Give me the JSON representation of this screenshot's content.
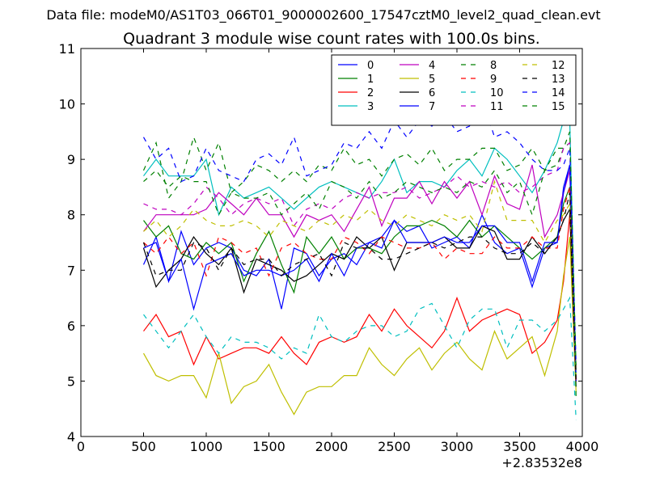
{
  "suptitle": "Data file: modeM0/AS1T03_066T01_9000002600_17547cztM0_level2_quad_clean.evt",
  "chart_data": {
    "type": "line",
    "title": "Quadrant 3 module wise count rates with 100.0s bins.",
    "xlabel": "",
    "ylabel": "",
    "x_offset_label": "+2.83532e8",
    "xlim": [
      0,
      4000
    ],
    "ylim": [
      4,
      11
    ],
    "xticks": [
      0,
      500,
      1000,
      1500,
      2000,
      2500,
      3000,
      3500,
      4000
    ],
    "xtick_labels": [
      "0",
      "500",
      "1000",
      "1500",
      "2000",
      "2500",
      "3000",
      "3500",
      "4000"
    ],
    "yticks": [
      4,
      5,
      6,
      7,
      8,
      9,
      10,
      11
    ],
    "ytick_labels": [
      "4",
      "5",
      "6",
      "7",
      "8",
      "9",
      "10",
      "11"
    ],
    "legend_position": "top-right",
    "legend_columns": 4,
    "x": [
      500,
      600,
      700,
      800,
      900,
      1000,
      1100,
      1200,
      1300,
      1400,
      1500,
      1600,
      1700,
      1800,
      1900,
      2000,
      2100,
      2200,
      2300,
      2400,
      2500,
      2600,
      2700,
      2800,
      2900,
      3000,
      3100,
      3200,
      3300,
      3400,
      3500,
      3600,
      3700,
      3800,
      3850,
      3900,
      3950
    ],
    "series": [
      {
        "name": "0",
        "color": "#0000ff",
        "dash": "solid",
        "values": [
          7.1,
          7.6,
          6.8,
          7.7,
          7.1,
          7.4,
          7.5,
          7.4,
          7.0,
          6.9,
          7.2,
          6.3,
          7.4,
          7.3,
          6.9,
          7.2,
          7.3,
          7.1,
          7.5,
          7.6,
          7.9,
          7.7,
          7.8,
          7.4,
          7.5,
          7.6,
          7.4,
          8.0,
          7.5,
          7.3,
          7.4,
          6.7,
          7.4,
          7.5,
          8.5,
          8.9,
          5.0
        ]
      },
      {
        "name": "1",
        "color": "#008000",
        "dash": "solid",
        "values": [
          7.9,
          7.6,
          7.8,
          7.3,
          7.2,
          7.5,
          7.3,
          7.5,
          6.8,
          7.3,
          7.7,
          7.1,
          6.6,
          7.6,
          7.3,
          7.6,
          7.2,
          7.4,
          7.4,
          7.3,
          7.6,
          7.8,
          7.8,
          7.9,
          7.8,
          7.6,
          7.9,
          7.6,
          7.8,
          7.6,
          7.4,
          7.2,
          7.4,
          7.6,
          8.2,
          8.5,
          5.2
        ]
      },
      {
        "name": "2",
        "color": "#ff0000",
        "dash": "solid",
        "values": [
          5.9,
          6.2,
          5.8,
          5.9,
          5.3,
          5.8,
          5.4,
          5.5,
          5.6,
          5.6,
          5.5,
          5.8,
          5.5,
          5.3,
          5.7,
          5.8,
          5.7,
          5.8,
          6.2,
          5.9,
          6.3,
          6.0,
          5.8,
          5.6,
          5.9,
          6.5,
          5.9,
          6.1,
          6.2,
          6.3,
          6.2,
          5.5,
          5.7,
          6.1,
          6.8,
          8.0,
          5.0
        ]
      },
      {
        "name": "3",
        "color": "#00bfbf",
        "dash": "solid",
        "values": [
          8.7,
          9.0,
          8.7,
          8.7,
          8.7,
          9.0,
          8.0,
          8.5,
          8.3,
          8.4,
          8.5,
          8.3,
          8.1,
          8.3,
          8.5,
          8.6,
          8.5,
          8.4,
          8.3,
          8.6,
          9.0,
          8.4,
          8.6,
          8.6,
          8.5,
          8.8,
          9.0,
          8.7,
          9.2,
          9.0,
          8.7,
          8.4,
          8.8,
          9.3,
          9.7,
          9.7,
          5.1
        ]
      },
      {
        "name": "4",
        "color": "#bf00bf",
        "dash": "solid",
        "values": [
          7.7,
          8.0,
          8.0,
          8.0,
          8.0,
          8.1,
          8.4,
          8.2,
          8.0,
          8.3,
          8.0,
          8.0,
          7.6,
          8.0,
          7.9,
          8.0,
          7.7,
          8.1,
          8.5,
          7.8,
          8.3,
          8.3,
          8.6,
          8.2,
          8.6,
          8.3,
          8.6,
          8.0,
          8.7,
          8.2,
          8.1,
          8.9,
          7.6,
          8.0,
          8.4,
          8.8,
          5.0
        ]
      },
      {
        "name": "5",
        "color": "#bfbf00",
        "dash": "solid",
        "values": [
          5.5,
          5.1,
          5.0,
          5.1,
          5.1,
          4.7,
          5.5,
          4.6,
          4.9,
          5.0,
          5.3,
          4.8,
          4.4,
          4.8,
          4.9,
          4.9,
          5.1,
          5.1,
          5.6,
          5.3,
          5.1,
          5.4,
          5.6,
          5.2,
          5.5,
          5.7,
          5.4,
          5.2,
          5.9,
          5.4,
          5.6,
          5.8,
          5.1,
          5.9,
          6.9,
          7.6,
          4.8
        ]
      },
      {
        "name": "6",
        "color": "#000000",
        "dash": "solid",
        "values": [
          7.4,
          6.7,
          7.0,
          7.2,
          7.6,
          7.3,
          7.1,
          7.4,
          6.6,
          7.2,
          7.1,
          7.0,
          6.8,
          6.9,
          7.1,
          7.3,
          7.2,
          7.6,
          7.4,
          7.6,
          7.0,
          7.5,
          7.5,
          7.5,
          7.6,
          7.4,
          7.4,
          7.8,
          7.7,
          7.2,
          7.2,
          7.6,
          7.3,
          7.6,
          7.9,
          8.1,
          4.9
        ]
      },
      {
        "name": "7",
        "color": "#0000ff",
        "dash": "solid",
        "values": [
          7.4,
          7.5,
          6.8,
          7.2,
          6.3,
          7.1,
          7.2,
          7.3,
          6.9,
          7.0,
          7.0,
          6.9,
          7.0,
          7.2,
          6.8,
          7.3,
          6.9,
          7.4,
          7.5,
          7.4,
          7.9,
          7.5,
          7.5,
          7.5,
          7.6,
          7.5,
          7.5,
          7.8,
          7.8,
          7.5,
          7.5,
          6.8,
          7.5,
          7.5,
          8.4,
          8.9,
          5.0
        ]
      },
      {
        "name": "8",
        "color": "#008000",
        "dash": "dashed",
        "values": [
          8.8,
          9.3,
          8.3,
          8.6,
          9.4,
          8.8,
          9.3,
          8.4,
          8.6,
          8.9,
          8.8,
          8.6,
          8.8,
          8.6,
          8.9,
          8.8,
          9.2,
          8.9,
          9.0,
          8.7,
          9.0,
          9.1,
          8.9,
          9.2,
          8.8,
          9.0,
          9.0,
          9.2,
          9.2,
          8.8,
          8.9,
          9.2,
          8.8,
          8.9,
          9.2,
          9.3,
          4.7
        ]
      },
      {
        "name": "9",
        "color": "#ff0000",
        "dash": "dashed",
        "values": [
          7.5,
          7.3,
          7.6,
          7.3,
          7.5,
          6.9,
          7.6,
          7.5,
          7.3,
          7.4,
          6.9,
          7.4,
          7.5,
          7.3,
          7.2,
          7.2,
          7.6,
          7.5,
          7.3,
          7.6,
          7.5,
          7.4,
          7.4,
          7.5,
          7.2,
          7.4,
          7.3,
          7.3,
          7.6,
          7.4,
          7.4,
          7.6,
          7.4,
          7.4,
          8.1,
          8.5,
          5.0
        ]
      },
      {
        "name": "10",
        "color": "#00bfbf",
        "dash": "dashed",
        "values": [
          6.2,
          5.9,
          5.6,
          5.9,
          6.2,
          5.8,
          5.5,
          5.8,
          5.7,
          5.7,
          5.6,
          5.4,
          5.6,
          5.5,
          6.2,
          5.8,
          5.7,
          5.9,
          6.0,
          6.0,
          5.8,
          5.9,
          6.3,
          6.4,
          6.0,
          5.6,
          6.1,
          6.3,
          6.3,
          5.6,
          6.1,
          6.1,
          5.9,
          6.1,
          6.3,
          6.5,
          4.3
        ]
      },
      {
        "name": "11",
        "color": "#bf00bf",
        "dash": "dashed",
        "values": [
          8.2,
          8.1,
          8.1,
          8.0,
          8.2,
          8.5,
          8.3,
          8.0,
          8.2,
          8.3,
          8.2,
          8.3,
          7.8,
          8.1,
          8.2,
          8.1,
          8.3,
          8.4,
          8.3,
          8.4,
          8.4,
          8.5,
          8.3,
          8.4,
          8.5,
          8.7,
          8.5,
          8.6,
          8.5,
          8.6,
          8.4,
          8.5,
          8.7,
          8.8,
          9.2,
          9.3,
          5.2
        ]
      },
      {
        "name": "12",
        "color": "#bfbf00",
        "dash": "dashed",
        "values": [
          7.7,
          7.9,
          7.6,
          7.8,
          8.1,
          7.9,
          7.8,
          7.8,
          7.9,
          7.8,
          7.6,
          7.9,
          7.8,
          7.7,
          7.9,
          7.8,
          8.0,
          7.9,
          8.1,
          7.9,
          7.8,
          8.0,
          7.9,
          7.8,
          8.0,
          7.9,
          8.0,
          7.7,
          8.6,
          7.9,
          7.9,
          7.9,
          7.5,
          7.9,
          8.0,
          8.2,
          5.1
        ]
      },
      {
        "name": "13",
        "color": "#000000",
        "dash": "dashed",
        "values": [
          7.5,
          6.9,
          7.0,
          7.0,
          7.5,
          7.4,
          7.0,
          7.4,
          7.1,
          7.2,
          7.2,
          6.9,
          7.1,
          7.2,
          7.3,
          6.9,
          7.5,
          7.4,
          7.4,
          7.2,
          7.2,
          7.3,
          7.4,
          7.5,
          7.4,
          7.5,
          7.6,
          7.6,
          7.4,
          7.3,
          7.3,
          7.5,
          7.3,
          7.6,
          7.9,
          8.4,
          5.0
        ]
      },
      {
        "name": "14",
        "color": "#0000ff",
        "dash": "dashed",
        "values": [
          9.4,
          9.0,
          9.2,
          8.6,
          8.7,
          9.2,
          8.8,
          8.7,
          8.6,
          9.0,
          9.1,
          8.9,
          9.4,
          8.7,
          8.8,
          8.9,
          9.3,
          9.2,
          9.5,
          9.2,
          9.7,
          9.4,
          9.7,
          9.6,
          9.8,
          9.5,
          9.6,
          10.1,
          9.4,
          9.5,
          9.3,
          9.0,
          8.8,
          8.8,
          8.9,
          9.2,
          5.3
        ]
      },
      {
        "name": "15",
        "color": "#008000",
        "dash": "dashed",
        "values": [
          8.6,
          8.8,
          8.5,
          8.7,
          8.6,
          8.6,
          8.0,
          8.4,
          8.3,
          8.3,
          8.4,
          8.0,
          8.2,
          8.4,
          8.1,
          8.6,
          8.5,
          8.3,
          8.6,
          8.3,
          8.4,
          8.6,
          8.5,
          8.4,
          8.5,
          8.4,
          8.6,
          8.5,
          8.8,
          8.4,
          8.6,
          8.0,
          8.8,
          9.2,
          9.2,
          9.5,
          5.2
        ]
      }
    ]
  }
}
